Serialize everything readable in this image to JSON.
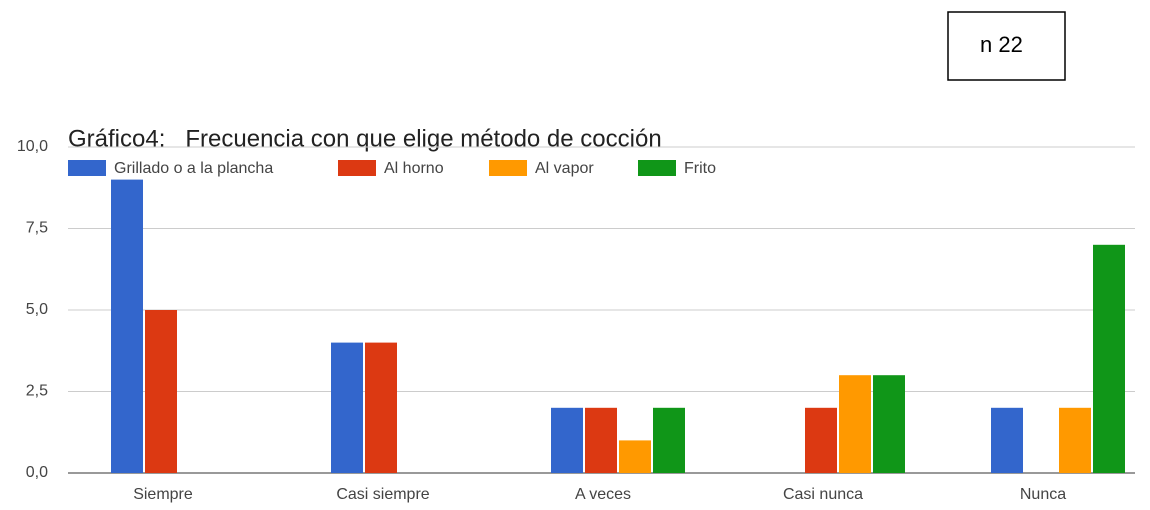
{
  "chart_data": {
    "type": "bar",
    "title": "Gráfico4:   Frecuencia con que elige método de cocción",
    "annotation": "n 22",
    "categories": [
      "Siempre",
      "Casi siempre",
      "A veces",
      "Casi nunca",
      "Nunca"
    ],
    "series": [
      {
        "name": "Grillado o a la plancha",
        "color": "#3366cc",
        "values": [
          9,
          4,
          2,
          0,
          2
        ]
      },
      {
        "name": "Al horno",
        "color": "#dc3912",
        "values": [
          5,
          4,
          2,
          2,
          0
        ]
      },
      {
        "name": "Al vapor",
        "color": "#ff9900",
        "values": [
          0,
          0,
          1,
          3,
          2
        ]
      },
      {
        "name": "Frito",
        "color": "#109618",
        "values": [
          0,
          0,
          2,
          3,
          7
        ]
      }
    ],
    "ylim": [
      0,
      10
    ],
    "yticks": [
      {
        "value": 0,
        "label": "0,0"
      },
      {
        "value": 2.5,
        "label": "2,5"
      },
      {
        "value": 5,
        "label": "5,0"
      },
      {
        "value": 7.5,
        "label": "7,5"
      },
      {
        "value": 10,
        "label": "10,0"
      }
    ],
    "grid": true,
    "legend": "top"
  }
}
